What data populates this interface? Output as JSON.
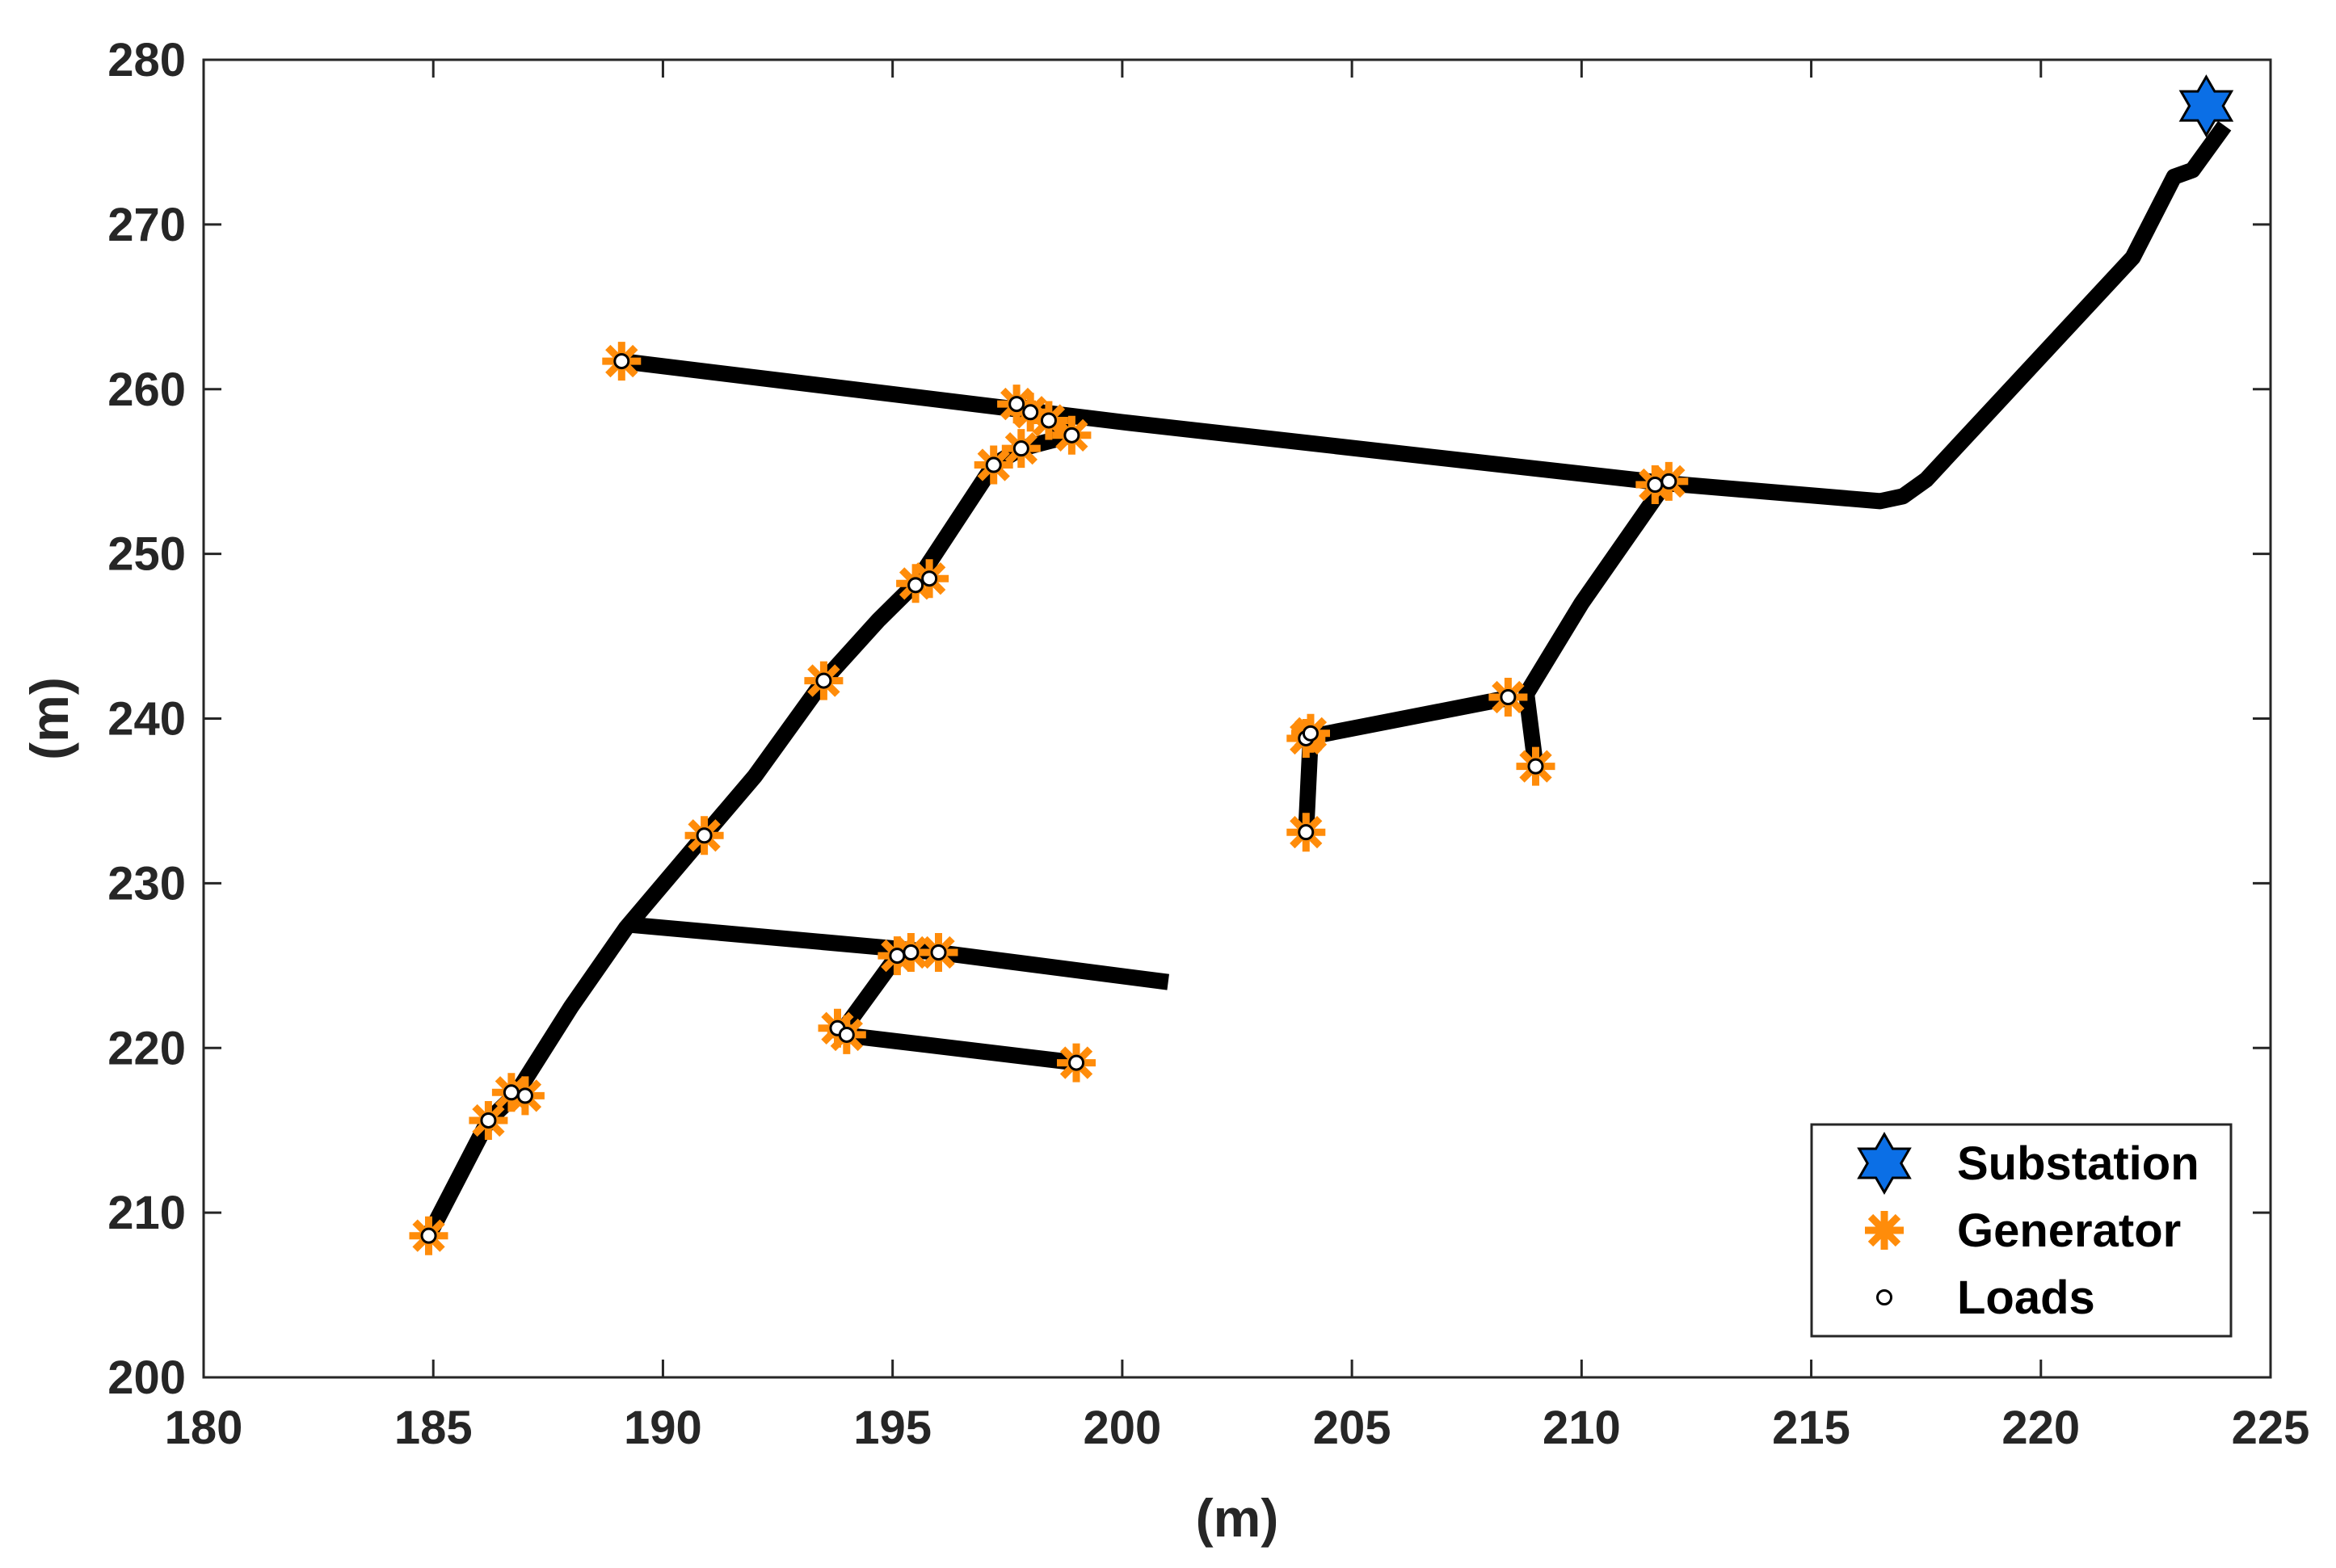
{
  "chart_data": {
    "type": "scatter",
    "title": "",
    "xlabel": "(m)",
    "ylabel": "(m)",
    "xlim": [
      180,
      225
    ],
    "ylim": [
      200,
      280
    ],
    "xticks": [
      180,
      185,
      190,
      195,
      200,
      205,
      210,
      215,
      220,
      225
    ],
    "yticks": [
      200,
      210,
      220,
      230,
      240,
      250,
      260,
      270,
      280
    ],
    "grid": false,
    "legend_position": "bottom-right",
    "colors": {
      "line": "#000000",
      "substation": "#0b6fe6",
      "generator": "#ff8c0a",
      "loads": "#ffffff"
    },
    "lines": [
      [
        [
          189.1,
          261.7
        ],
        [
          200.0,
          258.0
        ],
        [
          211.8,
          254.3
        ],
        [
          216.5,
          253.2
        ],
        [
          217.0,
          253.5
        ],
        [
          217.5,
          254.5
        ],
        [
          220.0,
          262.0
        ],
        [
          222.0,
          268.0
        ],
        [
          222.9,
          272.9
        ],
        [
          223.3,
          273.3
        ],
        [
          224.0,
          276.0
        ]
      ],
      [
        [
          184.9,
          208.6
        ],
        [
          186.2,
          215.6
        ],
        [
          186.8,
          217.2
        ],
        [
          188.0,
          222.5
        ],
        [
          189.2,
          227.3
        ],
        [
          190.9,
          232.9
        ],
        [
          192.0,
          236.5
        ],
        [
          193.5,
          242.3
        ],
        [
          194.7,
          246.0
        ],
        [
          195.5,
          248.2
        ],
        [
          197.2,
          255.4
        ],
        [
          197.8,
          256.4
        ],
        [
          198.9,
          257.2
        ]
      ],
      [
        [
          197.7,
          259.1
        ],
        [
          198.4,
          258.1
        ],
        [
          198.9,
          257.2
        ]
      ],
      [
        [
          189.2,
          227.5
        ],
        [
          195.2,
          226.0
        ],
        [
          196.0,
          225.8
        ],
        [
          201.0,
          224.0
        ]
      ],
      [
        [
          193.9,
          221.0
        ],
        [
          195.1,
          225.6
        ]
      ],
      [
        [
          193.9,
          220.8
        ],
        [
          199.0,
          219.1
        ]
      ],
      [
        [
          211.8,
          254.2
        ],
        [
          210.0,
          247.0
        ],
        [
          208.8,
          241.5
        ],
        [
          209.0,
          237.1
        ]
      ],
      [
        [
          208.5,
          241.3
        ],
        [
          204.1,
          238.9
        ],
        [
          204.0,
          233.1
        ]
      ]
    ],
    "series": [
      {
        "name": "Substation",
        "marker": "hexagram",
        "points": [
          [
            223.6,
            277.2
          ]
        ]
      },
      {
        "name": "Generator",
        "marker": "asterisk",
        "points": [
          [
            189.1,
            261.7
          ],
          [
            197.7,
            259.1
          ],
          [
            198.0,
            258.6
          ],
          [
            198.4,
            258.1
          ],
          [
            198.9,
            257.2
          ],
          [
            197.8,
            256.4
          ],
          [
            197.2,
            255.4
          ],
          [
            195.5,
            248.2
          ],
          [
            195.8,
            248.5
          ],
          [
            193.5,
            242.3
          ],
          [
            190.9,
            232.9
          ],
          [
            186.7,
            217.3
          ],
          [
            187.0,
            217.1
          ],
          [
            186.2,
            215.6
          ],
          [
            184.9,
            208.6
          ],
          [
            195.1,
            225.6
          ],
          [
            195.4,
            225.8
          ],
          [
            196.0,
            225.8
          ],
          [
            193.8,
            221.2
          ],
          [
            194.0,
            220.8
          ],
          [
            199.0,
            219.1
          ],
          [
            211.6,
            254.2
          ],
          [
            211.9,
            254.4
          ],
          [
            208.4,
            241.3
          ],
          [
            209.0,
            237.1
          ],
          [
            204.0,
            238.8
          ],
          [
            204.1,
            239.1
          ],
          [
            204.0,
            233.1
          ]
        ]
      },
      {
        "name": "Loads",
        "marker": "circle",
        "points": [
          [
            189.1,
            261.7
          ],
          [
            197.7,
            259.1
          ],
          [
            198.0,
            258.6
          ],
          [
            198.4,
            258.1
          ],
          [
            198.9,
            257.2
          ],
          [
            197.8,
            256.4
          ],
          [
            197.2,
            255.4
          ],
          [
            195.5,
            248.1
          ],
          [
            195.8,
            248.5
          ],
          [
            193.5,
            242.3
          ],
          [
            190.9,
            232.9
          ],
          [
            186.7,
            217.3
          ],
          [
            187.0,
            217.1
          ],
          [
            186.2,
            215.6
          ],
          [
            184.9,
            208.6
          ],
          [
            195.1,
            225.6
          ],
          [
            195.4,
            225.8
          ],
          [
            196.0,
            225.8
          ],
          [
            193.8,
            221.2
          ],
          [
            194.0,
            220.8
          ],
          [
            199.0,
            219.1
          ],
          [
            211.6,
            254.2
          ],
          [
            211.9,
            254.4
          ],
          [
            208.4,
            241.3
          ],
          [
            209.0,
            237.1
          ],
          [
            204.0,
            238.8
          ],
          [
            204.1,
            239.1
          ],
          [
            204.0,
            233.1
          ]
        ]
      }
    ]
  }
}
